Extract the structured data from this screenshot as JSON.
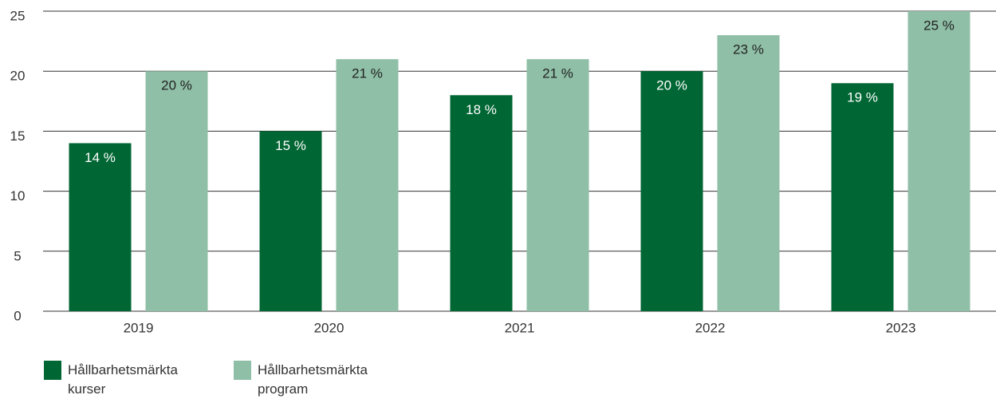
{
  "chart_data": {
    "type": "bar",
    "categories": [
      "2019",
      "2020",
      "2021",
      "2022",
      "2023"
    ],
    "series": [
      {
        "name": "Hållbarhetsmärkta kurser",
        "color": "#006633",
        "values": [
          14,
          15,
          18,
          20,
          19
        ],
        "value_labels": [
          "14 %",
          "15 %",
          "18 %",
          "20 %",
          "19 %"
        ]
      },
      {
        "name": "Hållbarhetsmärkta program",
        "color": "#8fbfa6",
        "values": [
          20,
          21,
          21,
          23,
          25
        ],
        "value_labels": [
          "20 %",
          "21 %",
          "21 %",
          "23 %",
          "25 %"
        ]
      }
    ],
    "ylim": [
      0,
      25
    ],
    "yticks": [
      0,
      5,
      10,
      15,
      20,
      25
    ],
    "grid": true,
    "legend": "bottom-left"
  }
}
